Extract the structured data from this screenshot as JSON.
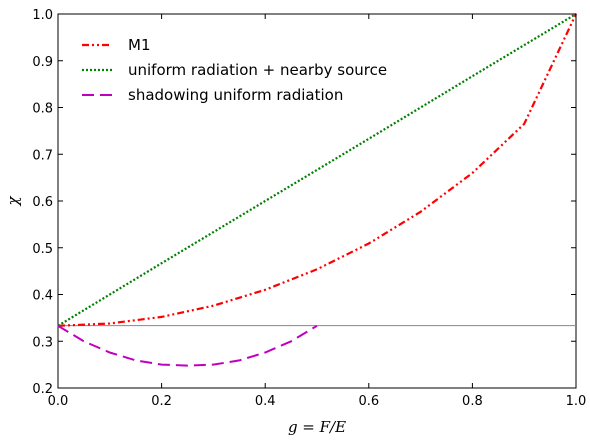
{
  "chart_data": {
    "type": "line",
    "xlabel": "g = F/E",
    "ylabel": "χ",
    "xlim": [
      0.0,
      1.0
    ],
    "ylim": [
      0.2,
      1.0
    ],
    "xticks": [
      0.0,
      0.2,
      0.4,
      0.6,
      0.8,
      1.0
    ],
    "xtick_labels": [
      "0.0",
      "0.2",
      "0.4",
      "0.6",
      "0.8",
      "1.0"
    ],
    "yticks": [
      0.2,
      0.3,
      0.4,
      0.5,
      0.6,
      0.7,
      0.8,
      0.9,
      1.0
    ],
    "ytick_labels": [
      "0.2",
      "0.3",
      "0.4",
      "0.5",
      "0.6",
      "0.7",
      "0.8",
      "0.9",
      "1.0"
    ],
    "grid": false,
    "legend_position": "top-left",
    "reference_line": {
      "y": 0.3333,
      "color": "#888888"
    },
    "series": [
      {
        "name": "M1",
        "color": "#ff0000",
        "style": "dash-dot-dot",
        "x": [
          0.0,
          0.1,
          0.2,
          0.3,
          0.4,
          0.5,
          0.6,
          0.7,
          0.8,
          0.9,
          1.0
        ],
        "values": [
          0.333,
          0.338,
          0.352,
          0.376,
          0.41,
          0.454,
          0.509,
          0.577,
          0.66,
          0.765,
          1.0
        ]
      },
      {
        "name": "uniform radiation + nearby source",
        "color": "#008000",
        "style": "dotted",
        "x": [
          0.0,
          0.2,
          0.4,
          0.6,
          0.8,
          1.0
        ],
        "values": [
          0.333,
          0.467,
          0.6,
          0.733,
          0.867,
          1.0
        ]
      },
      {
        "name": "shadowing uniform radiation",
        "color": "#bf00bf",
        "style": "dashed",
        "x": [
          0.0,
          0.05,
          0.1,
          0.15,
          0.2,
          0.25,
          0.3,
          0.35,
          0.4,
          0.45,
          0.5
        ],
        "values": [
          0.333,
          0.3,
          0.276,
          0.259,
          0.25,
          0.248,
          0.25,
          0.259,
          0.276,
          0.3,
          0.333
        ]
      }
    ]
  }
}
